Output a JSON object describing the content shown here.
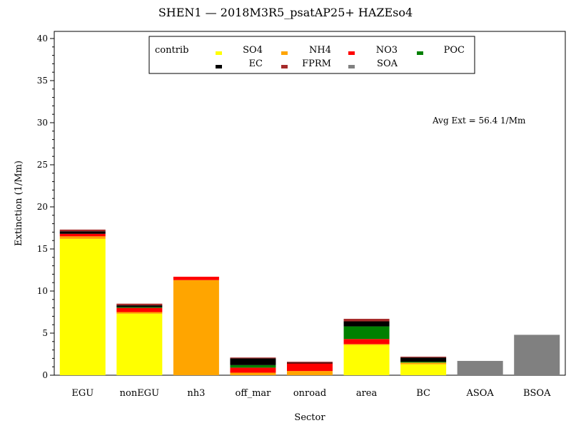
{
  "chart_data": {
    "type": "bar",
    "stacked": true,
    "title": "SHEN1 —  2018M3R5_psatAP25+ HAZEso4",
    "xlabel": "Sector",
    "ylabel": "Extinction (1/Mm)",
    "ylim": [
      0,
      40
    ],
    "yticks": [
      "0",
      "5",
      "10",
      "15",
      "20",
      "25",
      "30",
      "35",
      "40"
    ],
    "grid": false,
    "legend_placement": "top-center",
    "legend_title": "contrib",
    "annotation": "Avg Ext =   56.4  1/Mm",
    "categories": [
      "EGU",
      "nonEGU",
      "nh3",
      "off_mar",
      "onroad",
      "area",
      "BC",
      "ASOA",
      "BSOA"
    ],
    "series": [
      {
        "name": "SO4",
        "color": "#ffff00",
        "values": [
          16.2,
          7.3,
          0.0,
          0.0,
          0.0,
          3.6,
          1.3,
          0.0,
          0.0
        ]
      },
      {
        "name": "NH4",
        "color": "#ffa500",
        "values": [
          0.3,
          0.2,
          11.3,
          0.3,
          0.5,
          0.1,
          0.2,
          0.0,
          0.0
        ]
      },
      {
        "name": "NO3",
        "color": "#ff0000",
        "values": [
          0.3,
          0.5,
          0.4,
          0.6,
          0.9,
          0.6,
          0.0,
          0.0,
          0.0
        ]
      },
      {
        "name": "POC",
        "color": "#008000",
        "values": [
          0.0,
          0.1,
          0.0,
          0.3,
          0.0,
          1.5,
          0.1,
          0.0,
          0.0
        ]
      },
      {
        "name": "EC",
        "color": "#000000",
        "values": [
          0.3,
          0.2,
          0.0,
          0.8,
          0.1,
          0.6,
          0.5,
          0.0,
          0.0
        ]
      },
      {
        "name": "FPRM",
        "color": "#a52a2a",
        "values": [
          0.2,
          0.2,
          0.0,
          0.1,
          0.1,
          0.3,
          0.1,
          0.0,
          0.0
        ]
      },
      {
        "name": "SOA",
        "color": "#808080",
        "values": [
          0.0,
          0.0,
          0.0,
          0.0,
          0.0,
          0.0,
          0.0,
          1.7,
          4.8
        ]
      }
    ]
  }
}
